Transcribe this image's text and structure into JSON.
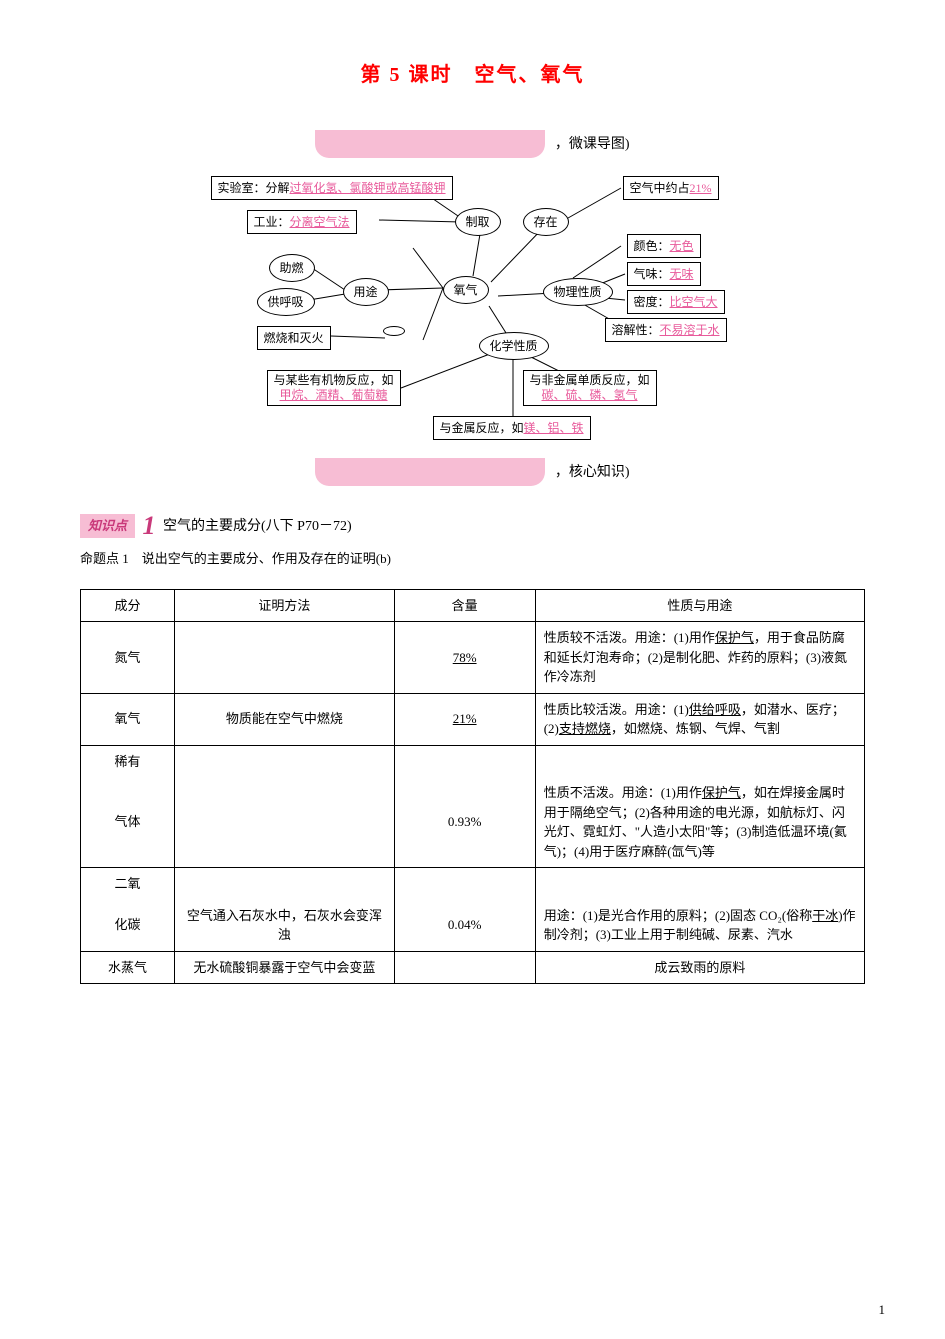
{
  "title": "第 5 课时　空气、氧气",
  "bars": {
    "top_label": "，微课导图)",
    "bottom_label": "，核心知识)"
  },
  "colors": {
    "title": "#ff0000",
    "pink_bar": "#f7bdd4",
    "pink_text": "#e85a9b",
    "tag_text": "#c9397a",
    "line": "#000000"
  },
  "mindmap": {
    "center": "氧气",
    "nodes": {
      "lab": {
        "prefix": "实验室：分解",
        "highlight": "过氧化氢、氯酸钾或高锰酸钾"
      },
      "industry": {
        "prefix": "工业：",
        "highlight": "分离空气法"
      },
      "prepare": "制取",
      "exist": "存在",
      "air_pct": {
        "prefix": "空气中约占",
        "highlight": "21%"
      },
      "aid_burn": "助燃",
      "breathe": "供呼吸",
      "use": "用途",
      "phys": "物理性质",
      "color": {
        "prefix": "颜色：",
        "highlight": "无色"
      },
      "smell": {
        "prefix": "气味：",
        "highlight": "无味"
      },
      "density": {
        "prefix": "密度：",
        "highlight": "比空气大"
      },
      "solub": {
        "prefix": "溶解性：",
        "highlight": "不易溶于水"
      },
      "burn_ext": "燃烧和灭火",
      "chem": "化学性质",
      "organic": {
        "line1": "与某些有机物反应，如",
        "highlight": "甲烷、酒精、葡萄糖"
      },
      "nonmetal": {
        "line1": "与非金属单质反应，如",
        "highlight": "碳、硫、磷、氢气"
      },
      "metal": {
        "line1": "与金属反应，如",
        "highlight": "镁、铝、铁"
      }
    }
  },
  "knowledge": {
    "tag": "知识点",
    "num": "1",
    "heading": "空气的主要成分(八下 P70－72)",
    "sub": "命题点 1　说出空气的主要成分、作用及存在的证明(b)"
  },
  "table": {
    "headers": [
      "成分",
      "证明方法",
      "含量",
      "性质与用途"
    ],
    "rows": [
      {
        "c1": "氮气",
        "c2": "",
        "c3": {
          "text": "78%",
          "underline": true
        },
        "c4": "性质较不活泼。用途：(1)用作<u>保护气</u>，用于食品防腐和延长灯泡寿命；(2)是制化肥、炸药的原料；(3)液氮作冷冻剂"
      },
      {
        "c1": "氧气",
        "c2": "物质能在空气中燃烧",
        "c3": {
          "text": "21%",
          "underline": true
        },
        "c4": "性质比较活泼。用途：(1)<u>供给呼吸</u>，如潜水、医疗；(2)<u>支持燃烧</u>，如燃烧、炼钢、气焊、气割"
      },
      {
        "c1a": "稀有",
        "c1b": "气体",
        "c2": "",
        "c3": "0.93%",
        "c4": "性质不活泼。用途：(1)用作<u>保护气</u>，如在焊接金属时用于隔绝空气；(2)各种用途的电光源，如航标灯、闪光灯、霓虹灯、\"人造小太阳\"等；(3)制造低温环境(氦气)；(4)用于医疗麻醉(氙气)等"
      },
      {
        "c1a": "二氧",
        "c1b": "化碳",
        "c2": "空气通入石灰水中，石灰水会变浑浊",
        "c3": "0.04%",
        "c4": "用途：(1)是光合作用的原料；(2)固态 CO₂(俗称<u>干冰</u>)作制冷剂；(3)工业上用于制纯碱、尿素、汽水"
      },
      {
        "c1": "水蒸气",
        "c2": "无水硫酸铜暴露于空气中会变蓝",
        "c3": "",
        "c4": "成云致雨的原料"
      }
    ]
  },
  "page_number": "1"
}
